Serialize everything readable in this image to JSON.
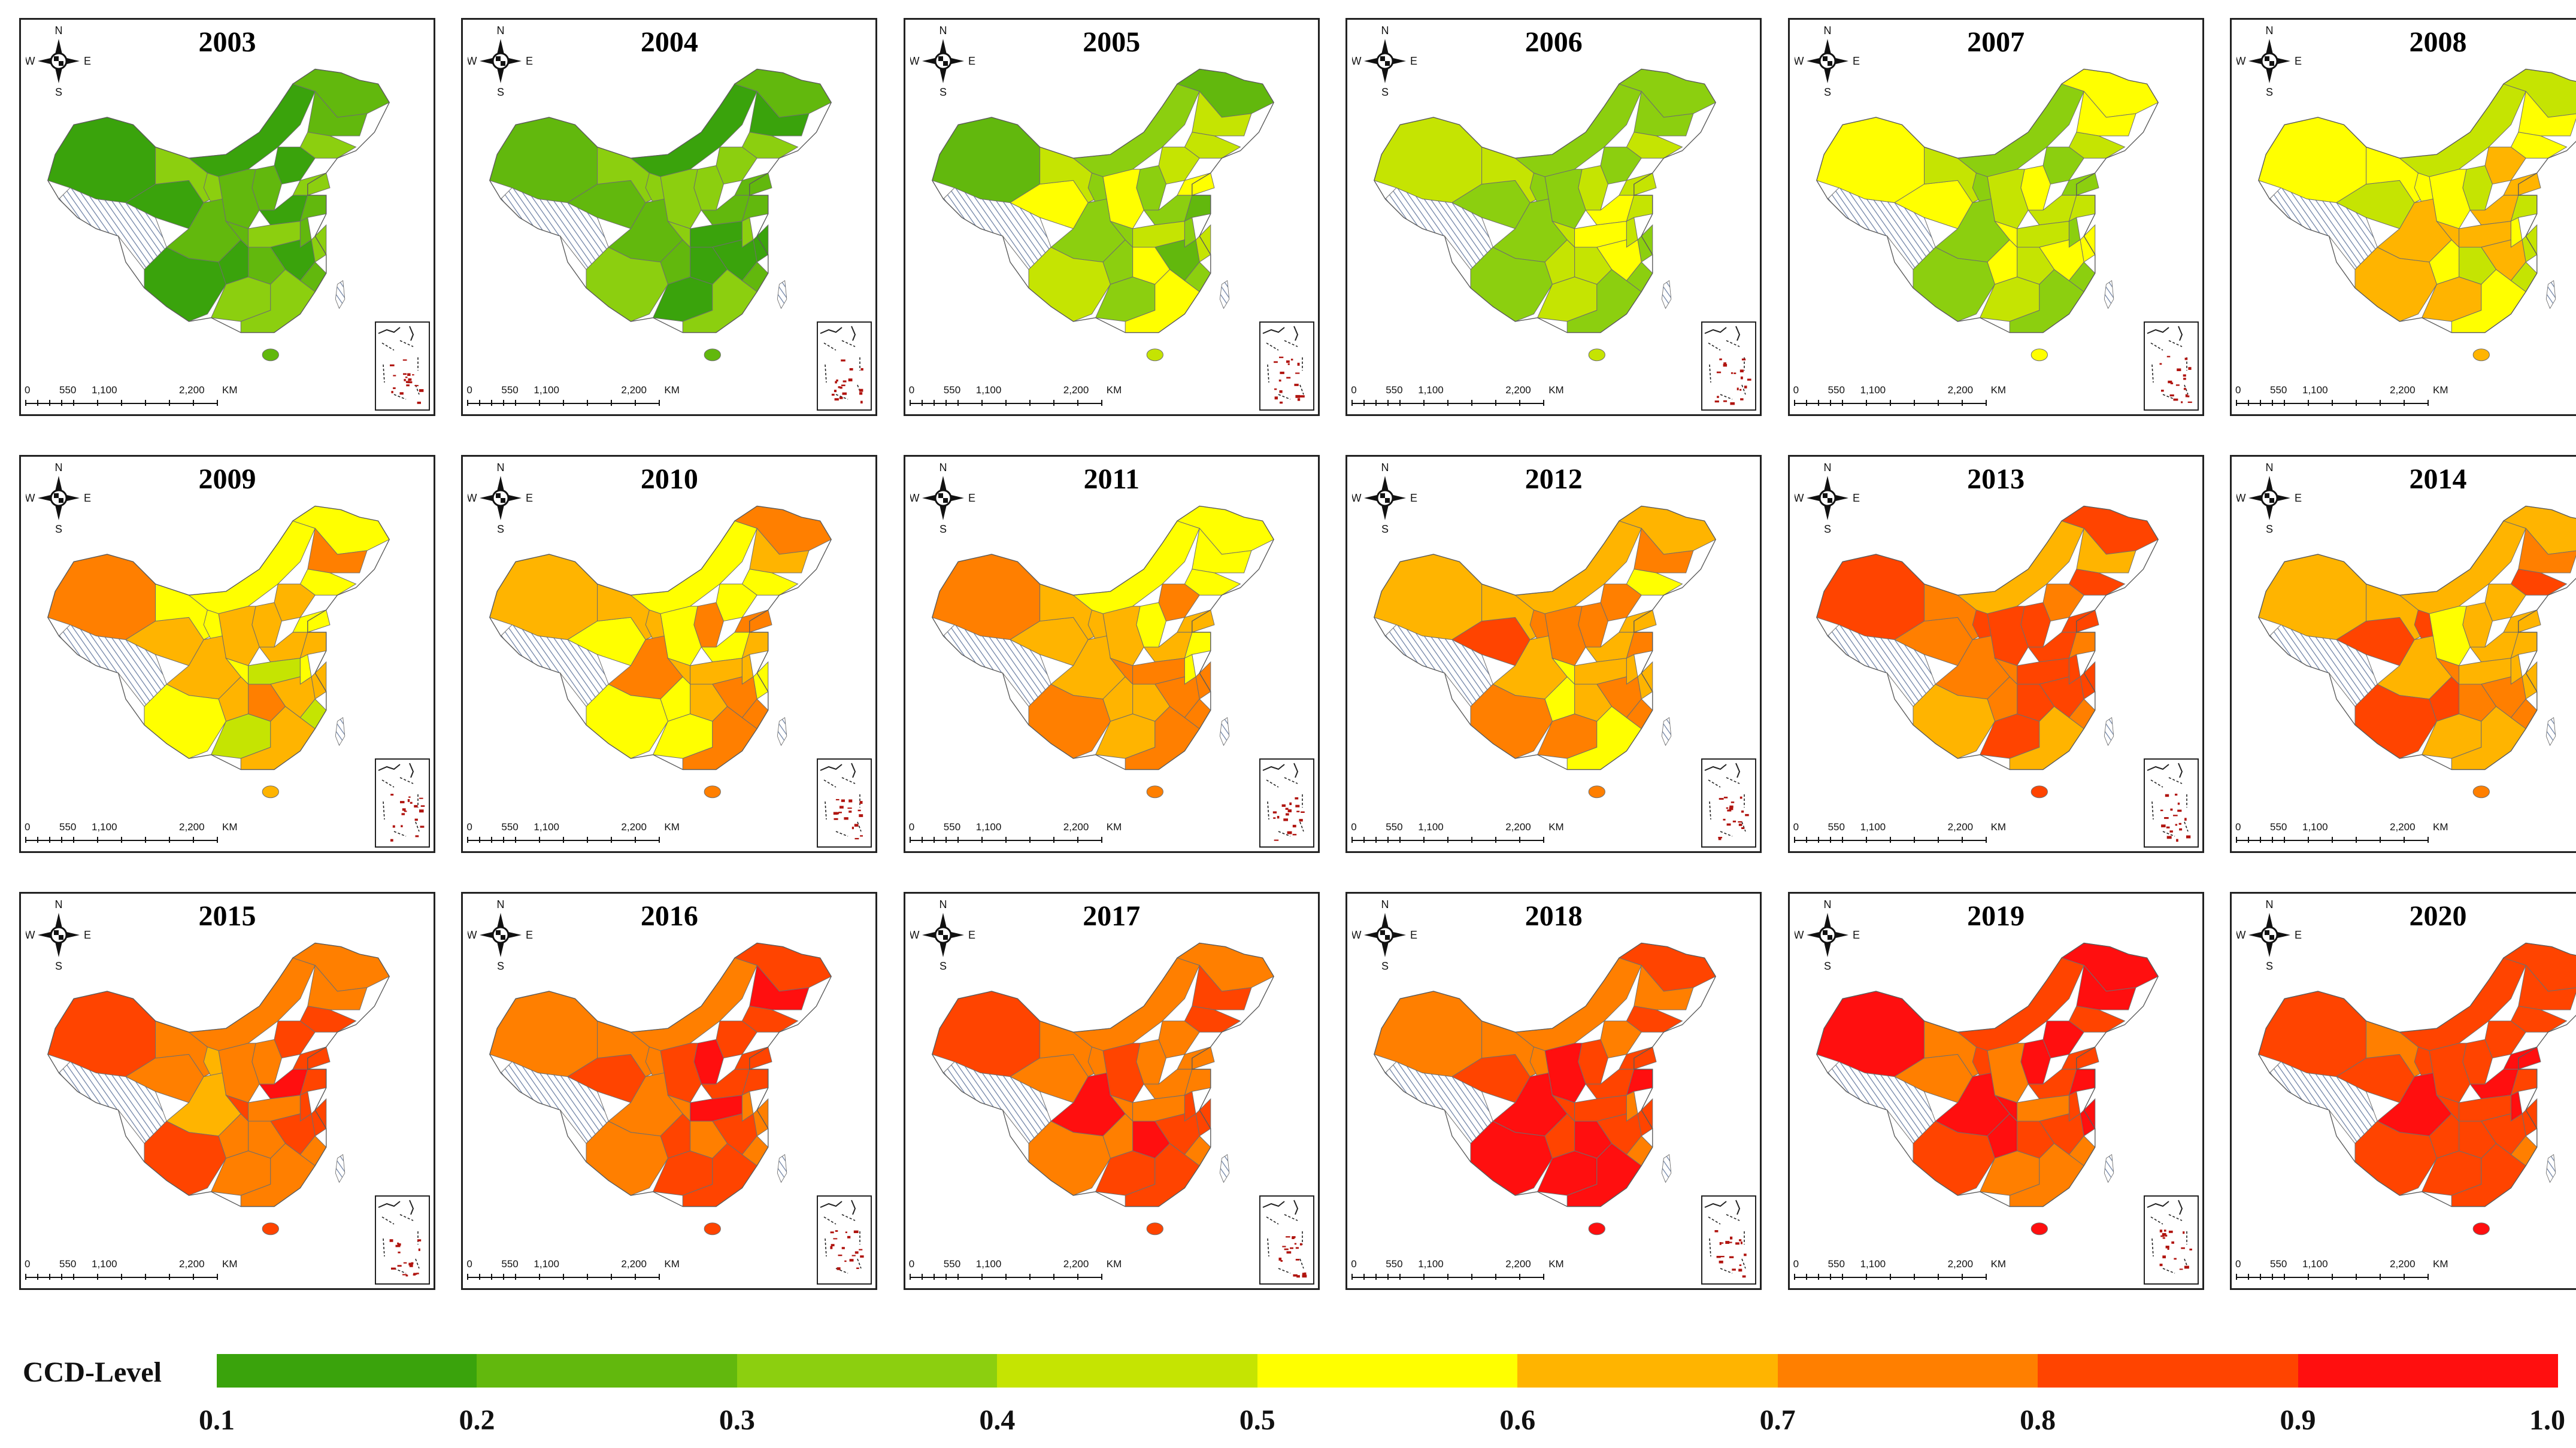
{
  "figure": {
    "legend_title": "CCD-Level",
    "legend_ticks": [
      "0.1",
      "0.2",
      "0.3",
      "0.4",
      "0.5",
      "0.6",
      "0.7",
      "0.8",
      "0.9",
      "1.0"
    ],
    "legend_colors": [
      "#3aa30c",
      "#62b80d",
      "#8ccf0f",
      "#c5e402",
      "#ffff00",
      "#ffb400",
      "#ff7f00",
      "#ff4400",
      "#ff0f0f"
    ],
    "compass": {
      "n": "N",
      "s": "S",
      "e": "E",
      "w": "W"
    },
    "scale": {
      "t0": "0",
      "t1": "550",
      "t2": "1,100",
      "t3": "2,200",
      "unit": "KM"
    },
    "nodata_pattern": "diagonal-hatch",
    "panels": [
      {
        "year": "2003",
        "level": 0.25
      },
      {
        "year": "2004",
        "level": 0.25
      },
      {
        "year": "2005",
        "level": 0.42
      },
      {
        "year": "2006",
        "level": 0.42
      },
      {
        "year": "2007",
        "level": 0.45
      },
      {
        "year": "2008",
        "level": 0.55
      },
      {
        "year": "2009",
        "level": 0.6
      },
      {
        "year": "2010",
        "level": 0.65
      },
      {
        "year": "2011",
        "level": 0.65
      },
      {
        "year": "2012",
        "level": 0.7
      },
      {
        "year": "2013",
        "level": 0.75
      },
      {
        "year": "2014",
        "level": 0.72
      },
      {
        "year": "2015",
        "level": 0.78
      },
      {
        "year": "2016",
        "level": 0.82
      },
      {
        "year": "2017",
        "level": 0.82
      },
      {
        "year": "2018",
        "level": 0.85
      },
      {
        "year": "2019",
        "level": 0.88
      },
      {
        "year": "2020",
        "level": 0.9
      }
    ]
  }
}
